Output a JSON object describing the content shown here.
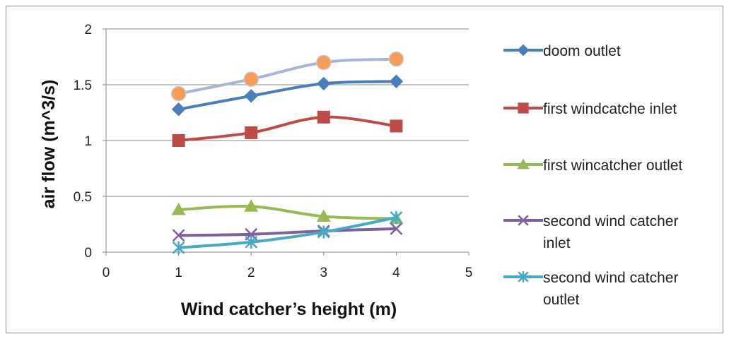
{
  "chart_data": {
    "type": "line",
    "title": "",
    "xlabel": "Wind catcher’s height (m)",
    "ylabel": "air flow (m^3/s)",
    "xlim": [
      0,
      5
    ],
    "ylim": [
      0,
      2
    ],
    "x_ticks": [
      "0",
      "1",
      "2",
      "3",
      "4",
      "5"
    ],
    "y_ticks": [
      "0",
      "0.5",
      "1",
      "1.5",
      "2"
    ],
    "grid": "horizontal",
    "legend_position": "right",
    "x": [
      1,
      2,
      3,
      4
    ],
    "series": [
      {
        "name": "doom outlet",
        "legend_lines": [
          "doom outlet"
        ],
        "color": "#4a7ebb",
        "marker": "diamond",
        "values": [
          1.28,
          1.4,
          1.51,
          1.53
        ]
      },
      {
        "name": "first windcatche inlet",
        "legend_lines": [
          "first windcatche inlet"
        ],
        "color": "#be4b48",
        "marker": "square",
        "values": [
          1.0,
          1.07,
          1.21,
          1.13
        ]
      },
      {
        "name": "first wincatcher outlet",
        "legend_lines": [
          "first wincatcher outlet"
        ],
        "color": "#98b954",
        "marker": "triangle",
        "values": [
          0.38,
          0.41,
          0.32,
          0.3
        ]
      },
      {
        "name": "second wind catcher inlet",
        "legend_lines": [
          "second wind catcher",
          "inlet"
        ],
        "color": "#7d60a0",
        "marker": "x",
        "values": [
          0.15,
          0.16,
          0.19,
          0.21
        ]
      },
      {
        "name": "second wind catcher outlet",
        "legend_lines": [
          "second wind catcher",
          "outlet"
        ],
        "color": "#46aac5",
        "marker": "star",
        "values": [
          0.04,
          0.09,
          0.18,
          0.31
        ]
      }
    ],
    "unlabeled_series": [
      {
        "color": "#a5b6d6",
        "marker_color": "#f59d56",
        "marker": "circle",
        "values": [
          1.42,
          1.55,
          1.7,
          1.73
        ]
      }
    ]
  }
}
